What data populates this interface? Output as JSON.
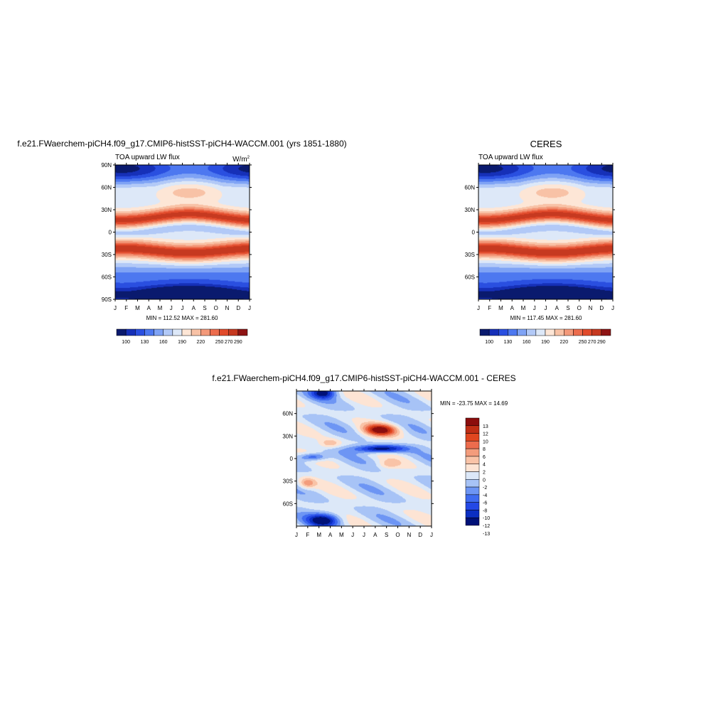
{
  "colors": {
    "model_levels": [
      "#0a1a6e",
      "#1630b8",
      "#2a4fe0",
      "#4d78f0",
      "#7fa3f5",
      "#b2c9f7",
      "#dde8f8",
      "#fde6d6",
      "#f8c2a6",
      "#f3997a",
      "#ec6c4d",
      "#e14a2b",
      "#c63920",
      "#8e1414"
    ],
    "diff_levels": [
      "#001178",
      "#0b2fc2",
      "#2448e5",
      "#3f6bf0",
      "#6d95f4",
      "#a7c3f6",
      "#dce8f8",
      "#fde4d4",
      "#f9c3a7",
      "#f39c7c",
      "#ec6c4d",
      "#e0461f",
      "#c02e15",
      "#8b0d0d"
    ]
  },
  "panels": [
    {
      "id": "model",
      "title": "f.e21.FWaerchem-piCH4.f09_g17.CMIP6-histSST-piCH4-WACCM.001 (yrs 1851-1880)",
      "left_label": "TOA upward LW flux",
      "units": "W/m",
      "units_sup": "2",
      "y_ticks": [
        "90N",
        "60N",
        "30N",
        "0",
        "30S",
        "60S",
        "90S"
      ],
      "x_ticks": [
        "J",
        "F",
        "M",
        "A",
        "M",
        "J",
        "J",
        "A",
        "S",
        "O",
        "N",
        "D",
        "J"
      ],
      "minmax": "MIN = 112.52   MAX = 281.60",
      "colorbar_labels": [
        "100",
        "130",
        "160",
        "190",
        "220",
        "250",
        "270",
        "290"
      ]
    },
    {
      "id": "obs",
      "title": "CERES",
      "left_label": "TOA upward LW flux",
      "y_ticks": [
        "60N",
        "30N",
        "0",
        "30S",
        "60S"
      ],
      "x_ticks": [
        "J",
        "F",
        "M",
        "A",
        "M",
        "J",
        "J",
        "A",
        "S",
        "O",
        "N",
        "D",
        "J"
      ],
      "minmax": "MIN = 117.45   MAX = 281.60",
      "colorbar_labels": [
        "100",
        "130",
        "160",
        "190",
        "220",
        "250",
        "270",
        "290"
      ]
    },
    {
      "id": "diff",
      "title": "f.e21.FWaerchem-piCH4.f09_g17.CMIP6-histSST-piCH4-WACCM.001 - CERES",
      "y_ticks": [
        "60N",
        "30N",
        "0",
        "30S",
        "60S"
      ],
      "x_ticks": [
        "J",
        "F",
        "M",
        "A",
        "M",
        "J",
        "J",
        "A",
        "S",
        "O",
        "N",
        "D",
        "J"
      ],
      "minmax": "MIN = -23.75   MAX =  14.69",
      "colorbar_labels": [
        "13",
        "12",
        "10",
        "8",
        "6",
        "4",
        "2",
        "0",
        "-2",
        "-4",
        "-6",
        "-8",
        "-10",
        "-12",
        "-13"
      ]
    }
  ],
  "chart_data": [
    {
      "type": "heatmap",
      "title": "f.e21.FWaerchem-piCH4.f09_g17.CMIP6-histSST-piCH4-WACCM.001 (yrs 1851-1880)",
      "variable": "TOA upward LW flux",
      "units": "W/m2",
      "x": [
        "J",
        "F",
        "M",
        "A",
        "M",
        "J",
        "J",
        "A",
        "S",
        "O",
        "N",
        "D",
        "J"
      ],
      "y_range": [
        -90,
        90
      ],
      "min": 112.52,
      "max": 281.6,
      "levels": [
        100,
        130,
        160,
        190,
        220,
        250,
        270,
        290
      ]
    },
    {
      "type": "heatmap",
      "title": "CERES",
      "variable": "TOA upward LW flux",
      "x": [
        "J",
        "F",
        "M",
        "A",
        "M",
        "J",
        "J",
        "A",
        "S",
        "O",
        "N",
        "D",
        "J"
      ],
      "y_range": [
        -90,
        90
      ],
      "min": 117.45,
      "max": 281.6,
      "levels": [
        100,
        130,
        160,
        190,
        220,
        250,
        270,
        290
      ]
    },
    {
      "type": "heatmap",
      "title": "f.e21.FWaerchem-piCH4.f09_g17.CMIP6-histSST-piCH4-WACCM.001 - CERES",
      "x": [
        "J",
        "F",
        "M",
        "A",
        "M",
        "J",
        "J",
        "A",
        "S",
        "O",
        "N",
        "D",
        "J"
      ],
      "y_range": [
        -90,
        90
      ],
      "min": -23.75,
      "max": 14.69,
      "levels": [
        -13,
        -12,
        -10,
        -8,
        -6,
        -4,
        -2,
        0,
        2,
        4,
        6,
        8,
        10,
        12,
        13
      ]
    }
  ]
}
